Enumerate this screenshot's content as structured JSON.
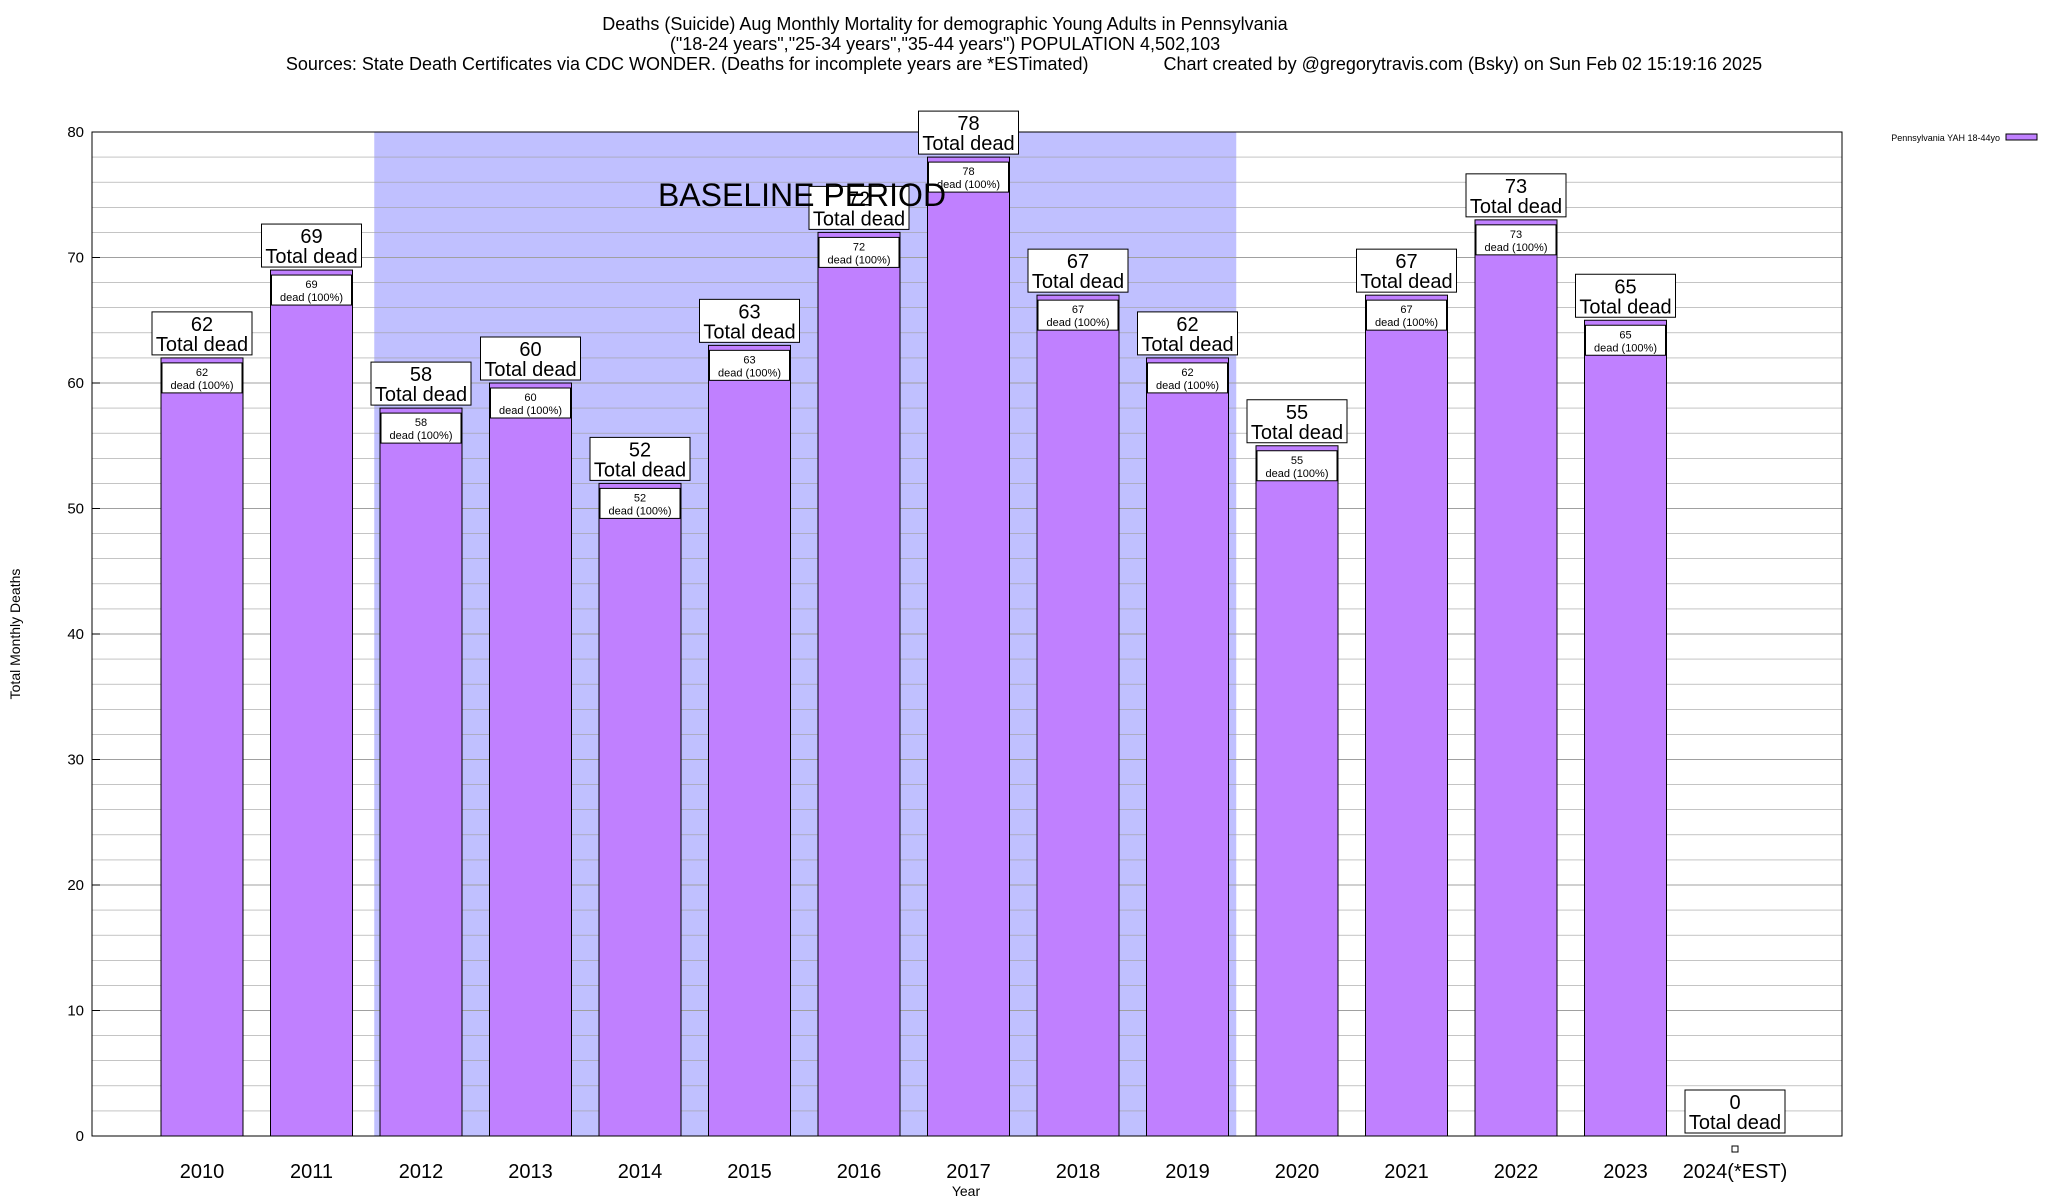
{
  "chart_data": {
    "type": "bar",
    "title": "Deaths (Suicide) Aug Monthly Mortality for demographic Young Adults in Pennsylvania",
    "subtitle": "(\"18-24 years\",\"25-34 years\",\"35-44 years\") POPULATION 4,502,103",
    "source_line": "Sources: State Death Certificates via CDC WONDER. (Deaths for incomplete years are *ESTimated)               Chart created by @gregorytravis.com (Bsky) on Sun Feb 02 15:19:16 2025",
    "xlabel": "Year",
    "ylabel": "Total Monthly Deaths",
    "ylim": [
      0,
      80
    ],
    "yticks": [
      0,
      10,
      20,
      30,
      40,
      50,
      60,
      70,
      80
    ],
    "grid": true,
    "legend_position": "top-right",
    "baseline_label": "BASELINE PERIOD",
    "baseline_range": [
      "2012",
      "2019"
    ],
    "total_label": "Total dead",
    "inner_label": "dead (100%)",
    "categories": [
      "2010",
      "2011",
      "2012",
      "2013",
      "2014",
      "2015",
      "2016",
      "2017",
      "2018",
      "2019",
      "2020",
      "2021",
      "2022",
      "2023",
      "2024(*EST)"
    ],
    "series": [
      {
        "name": "Pennsylvania YAH 18-44yo",
        "values": [
          62,
          69,
          58,
          60,
          52,
          63,
          72,
          78,
          67,
          62,
          55,
          67,
          73,
          65,
          0
        ]
      }
    ],
    "colors": {
      "bar": "#c080ff",
      "bar_top": "#b070f0",
      "baseline_fill": "#c0c0ff",
      "grid": "#a0a0a0"
    }
  }
}
